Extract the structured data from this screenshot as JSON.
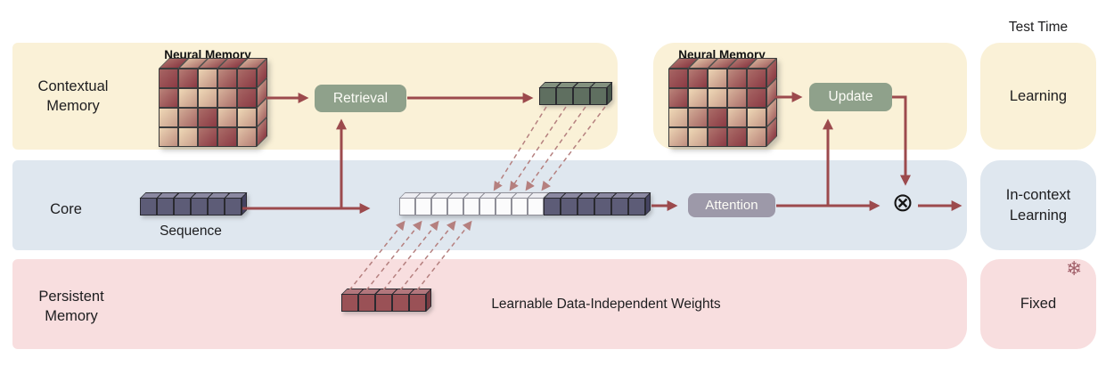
{
  "diagram": {
    "bands": [
      {
        "label": "Contextual\nMemory"
      },
      {
        "label": "Core"
      },
      {
        "label": "Persistent\nMemory"
      }
    ],
    "right_column": {
      "header": "Test Time",
      "boxes": [
        {
          "label": "Learning"
        },
        {
          "label": "In-context\nLearning"
        },
        {
          "label": "Fixed"
        }
      ]
    },
    "nodes": {
      "retrieval": "Retrieval",
      "update": "Update",
      "attention": "Attention"
    },
    "labels": {
      "neural_memory_left": "Neural Memory",
      "neural_memory_right": "Neural Memory",
      "sequence": "Sequence",
      "persistent_weights": "Learnable Data-Independent Weights"
    },
    "icons": {
      "multiply_icon": "⊗",
      "snowflake_icon": "❄"
    },
    "strips": {
      "sequence": {
        "count": 6
      },
      "context_tokens": {
        "count": 9
      },
      "context_sequence": {
        "count": 6
      },
      "retrieved": {
        "count": 4
      },
      "persistent": {
        "count": 5
      }
    },
    "colors": {
      "band_yellow": "#FAF1D7",
      "band_blue": "#DFE7EF",
      "band_pink": "#F8DEDF",
      "node_green": "#8FA18B",
      "node_gray": "#9D99A9",
      "arrow": "#9C4A4D",
      "arrow_dashed": "#B5807F",
      "text": "#1D1D1F",
      "cube_purple": {
        "front": "#5D5C77",
        "top": "#8A88A1",
        "side": "#454361",
        "border": "#2A2A30"
      },
      "cube_white": {
        "front": "#FBFBFC",
        "top": "#EDEDF2",
        "side": "#E2E2E8",
        "border": "#8F8F98"
      },
      "cube_green": {
        "front": "#5F6F60",
        "top": "#83917F",
        "side": "#47564A",
        "border": "#2A2A30"
      },
      "cube_red": {
        "front": "#9A5156",
        "top": "#B2767C",
        "side": "#7A3C43",
        "border": "#2A2A30"
      },
      "memory_cream": "#EED8B6",
      "memory_maroon": "#8B3A44",
      "snowflake": "#A2616B"
    }
  }
}
